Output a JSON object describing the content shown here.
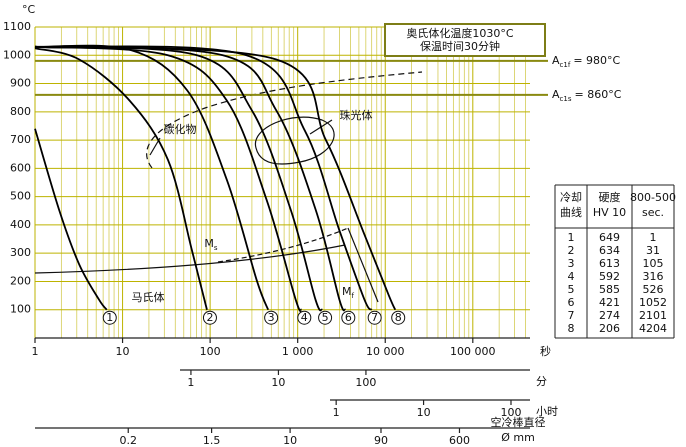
{
  "chart_data": {
    "type": "line",
    "y_unit": "°C",
    "xscale": "log",
    "x_unit": "秒",
    "xlim": [
      1,
      450000
    ],
    "ylim": [
      0,
      1100
    ],
    "yticks": [
      100,
      200,
      300,
      400,
      500,
      600,
      700,
      800,
      900,
      1000,
      1100
    ],
    "xticks": [
      1,
      10,
      100,
      {
        "value": 1000,
        "label": "1 000"
      },
      {
        "value": 10000,
        "label": "10 000"
      },
      {
        "value": 100000,
        "label": "100 000"
      }
    ],
    "xminorticks": [
      2,
      3,
      4,
      5,
      6,
      7,
      8,
      9,
      20,
      30,
      40,
      50,
      60,
      70,
      80,
      90,
      200,
      300,
      400,
      500,
      600,
      700,
      800,
      900,
      2000,
      3000,
      4000,
      5000,
      6000,
      7000,
      8000,
      9000,
      20000,
      30000,
      40000,
      50000,
      60000,
      70000,
      80000,
      90000,
      200000,
      300000,
      400000
    ],
    "grid": true,
    "grid_color": "#bdb300",
    "box_text": [
      "奥氏体化温度1030°C",
      "保温时间30分钟"
    ],
    "reference_lines": [
      {
        "value": 980,
        "label": "A",
        "sub": "c1f",
        "text": "= 980°C"
      },
      {
        "value": 860,
        "label": "A",
        "sub": "c1s",
        "text": "= 860°C"
      }
    ],
    "annotations": [
      {
        "text": "碳化物"
      },
      {
        "text": "珠光体"
      },
      {
        "text": "马氏体"
      },
      {
        "text": "M",
        "sub": "s"
      },
      {
        "text": "M",
        "sub": "f"
      }
    ],
    "series": [
      {
        "name": "1",
        "color": "#000000",
        "x": [
          1,
          1.9,
          3.2,
          5.4,
          6.6
        ],
        "values": [
          740,
          450,
          260,
          135,
          100
        ]
      },
      {
        "name": "2",
        "color": "#000000",
        "x": [
          1,
          3.2,
          12,
          33,
          62,
          92
        ],
        "values": [
          1025,
          985,
          840,
          630,
          310,
          100
        ]
      },
      {
        "name": "3",
        "color": "#000000",
        "x": [
          1,
          12,
          55,
          155,
          340,
          460
        ],
        "values": [
          1030,
          1020,
          875,
          560,
          205,
          100
        ]
      },
      {
        "name": "4",
        "color": "#000000",
        "x": [
          1,
          33,
          155,
          440,
          950,
          1100
        ],
        "values": [
          1030,
          1000,
          840,
          490,
          135,
          100
        ]
      },
      {
        "name": "5",
        "color": "#000000",
        "x": [
          1,
          71,
          300,
          830,
          1600,
          1900
        ],
        "values": [
          1030,
          1000,
          805,
          455,
          135,
          100
        ]
      },
      {
        "name": "6",
        "color": "#000000",
        "x": [
          1,
          140,
          570,
          1600,
          3000,
          3500
        ],
        "values": [
          1030,
          1000,
          805,
          455,
          135,
          100
        ]
      },
      {
        "name": "7",
        "color": "#000000",
        "x": [
          1,
          260,
          1200,
          3000,
          5800,
          7000
        ],
        "values": [
          1030,
          1000,
          735,
          380,
          135,
          100
        ]
      },
      {
        "name": "8",
        "color": "#000000",
        "x": [
          1,
          570,
          2100,
          5800,
          11000,
          13000
        ],
        "values": [
          1030,
          985,
          700,
          365,
          150,
          100
        ]
      }
    ],
    "secondary_axes": [
      {
        "unit": "分",
        "xlim": [
          0.75,
          7500
        ],
        "ticks": [
          1,
          10,
          100
        ]
      },
      {
        "unit": "小时",
        "xlim": [
          0.85,
          165
        ],
        "ticks": [
          1,
          10,
          100
        ]
      },
      {
        "unit": "空冷棒直径",
        "unit2": "Ø mm",
        "xlim": [
          0.021,
          3300
        ],
        "ticks": [
          0.2,
          1.5,
          10,
          90,
          600
        ]
      }
    ]
  },
  "table": {
    "header": [
      [
        "冷却",
        "曲线"
      ],
      [
        "硬度",
        "HV 10"
      ],
      [
        "800-500",
        "sec."
      ]
    ],
    "rows": [
      [
        "1",
        "649",
        "1"
      ],
      [
        "2",
        "634",
        "31"
      ],
      [
        "3",
        "613",
        "105"
      ],
      [
        "4",
        "592",
        "316"
      ],
      [
        "5",
        "585",
        "526"
      ],
      [
        "6",
        "421",
        "1052"
      ],
      [
        "7",
        "274",
        "2101"
      ],
      [
        "8",
        "206",
        "4204"
      ]
    ]
  }
}
